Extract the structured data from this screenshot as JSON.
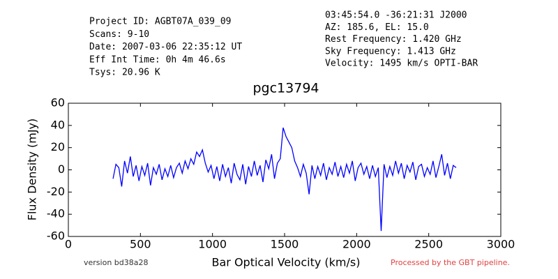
{
  "header": {
    "left": [
      "Project ID: AGBT07A_039_09",
      "Scans: 9-10",
      "Date: 2007-03-06 22:35:12 UT",
      "Eff Int Time: 0h 4m 46.6s",
      "Tsys: 20.96 K"
    ],
    "right": [
      "03:45:54.0 -36:21:31 J2000",
      "AZ: 185.6, EL: 15.0",
      "Rest Frequency:   1.420 GHz",
      "Sky Frequency:    1.413 GHz",
      "Velocity: 1495 km/s OPTI-BAR"
    ]
  },
  "footer": {
    "version": "version bd38a28",
    "pipeline": "Processed by the GBT pipeline."
  },
  "chart_data": {
    "type": "line",
    "title": "pgc13794",
    "x_label": "Bar Optical Velocity (km/s)",
    "y_label": "Flux Density (mJy)",
    "xlim": [
      0,
      3000
    ],
    "xticks": [
      0,
      500,
      1000,
      1500,
      2000,
      2500,
      3000
    ],
    "ylim": [
      -60,
      60
    ],
    "yticks": [
      -60,
      -40,
      -20,
      0,
      20,
      40,
      60
    ],
    "series": [
      {
        "name": "spectrum",
        "color": "#0000ff",
        "x": [
          310,
          330,
          350,
          370,
          390,
          410,
          430,
          450,
          470,
          490,
          510,
          530,
          550,
          570,
          590,
          610,
          630,
          650,
          670,
          690,
          710,
          730,
          750,
          770,
          790,
          810,
          830,
          850,
          870,
          890,
          910,
          930,
          950,
          970,
          990,
          1010,
          1030,
          1050,
          1070,
          1090,
          1110,
          1130,
          1150,
          1170,
          1190,
          1210,
          1230,
          1250,
          1270,
          1290,
          1310,
          1330,
          1350,
          1370,
          1390,
          1410,
          1430,
          1450,
          1470,
          1490,
          1510,
          1530,
          1550,
          1570,
          1590,
          1610,
          1630,
          1650,
          1670,
          1690,
          1710,
          1730,
          1750,
          1770,
          1790,
          1810,
          1830,
          1850,
          1870,
          1890,
          1910,
          1930,
          1950,
          1970,
          1990,
          2010,
          2030,
          2050,
          2070,
          2090,
          2110,
          2130,
          2150,
          2170,
          2190,
          2210,
          2230,
          2250,
          2270,
          2290,
          2310,
          2330,
          2350,
          2370,
          2390,
          2410,
          2430,
          2450,
          2470,
          2490,
          2510,
          2530,
          2550,
          2570,
          2590,
          2610,
          2630,
          2650,
          2670,
          2690
        ],
        "values": [
          -8,
          5,
          2,
          -15,
          8,
          -3,
          12,
          -6,
          4,
          -10,
          3,
          -5,
          6,
          -14,
          2,
          -4,
          5,
          -9,
          1,
          -6,
          4,
          -7,
          2,
          6,
          -3,
          8,
          1,
          10,
          5,
          16,
          12,
          18,
          6,
          -2,
          4,
          -8,
          3,
          -10,
          5,
          -6,
          2,
          -12,
          6,
          -4,
          -9,
          5,
          -13,
          3,
          -6,
          8,
          -5,
          4,
          -11,
          9,
          1,
          14,
          -8,
          6,
          10,
          38,
          30,
          25,
          20,
          8,
          2,
          -6,
          5,
          -3,
          -22,
          4,
          -8,
          3,
          -5,
          6,
          -9,
          2,
          -4,
          7,
          -6,
          3,
          -7,
          5,
          -3,
          8,
          -10,
          2,
          6,
          -4,
          3,
          -8,
          4,
          -6,
          2,
          -55,
          5,
          -7,
          3,
          -5,
          8,
          -3,
          6,
          -8,
          4,
          -2,
          7,
          -9,
          3,
          5,
          -6,
          2,
          -4,
          8,
          -7,
          3,
          14,
          -5,
          6,
          -8,
          4,
          2
        ]
      }
    ]
  }
}
